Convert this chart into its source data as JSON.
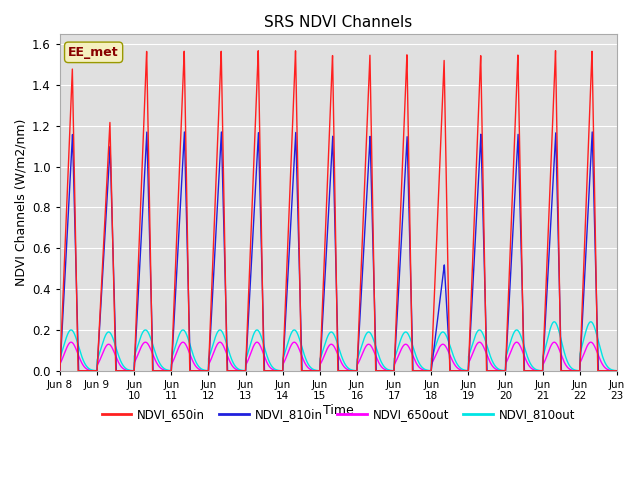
{
  "title": "SRS NDVI Channels",
  "xlabel": "Time",
  "ylabel": "NDVI Channels (W/m2/nm)",
  "annotation": "EE_met",
  "ylim": [
    0.0,
    1.65
  ],
  "yticks": [
    0.0,
    0.2,
    0.4,
    0.6,
    0.8,
    1.0,
    1.2,
    1.4,
    1.6
  ],
  "bg_color": "#e0e0e0",
  "series": {
    "NDVI_650in": {
      "color": "#ff2020",
      "lw": 1.0
    },
    "NDVI_810in": {
      "color": "#2020dd",
      "lw": 1.0
    },
    "NDVI_650out": {
      "color": "#ff00ff",
      "lw": 1.0
    },
    "NDVI_810out": {
      "color": "#00e5e5",
      "lw": 1.0
    }
  },
  "legend_entries": [
    {
      "label": "NDVI_650in",
      "color": "#ff2020"
    },
    {
      "label": "NDVI_810in",
      "color": "#2020dd"
    },
    {
      "label": "NDVI_650out",
      "color": "#ff00ff"
    },
    {
      "label": "NDVI_810out",
      "color": "#00e5e5"
    }
  ],
  "xtick_positions": [
    8,
    9,
    10,
    11,
    12,
    13,
    14,
    15,
    16,
    17,
    18,
    19,
    20,
    21,
    22,
    23
  ],
  "xtick_labels": [
    "Jun 8",
    "Jun 9",
    "Jun 10",
    "Jun 11",
    "Jun 12",
    "Jun 13",
    "Jun 14",
    "Jun 15",
    "Jun 16",
    "Jun 17",
    "Jun 18",
    "Jun 19",
    "Jun 20",
    "Jun 21",
    "Jun 22",
    "Jun 23"
  ]
}
